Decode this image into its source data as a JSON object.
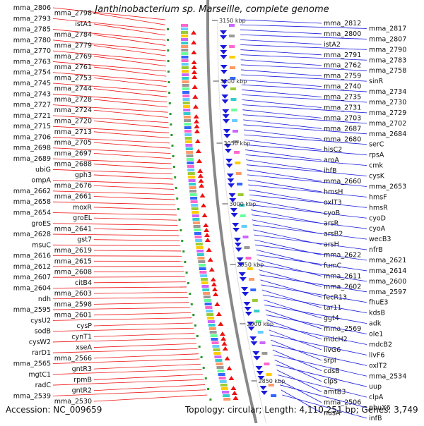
{
  "map": {
    "title": "Janthinobacterium sp. Marseille, complete genome",
    "accession": "Accession: NC_009659",
    "topology": "Topology: circular; Length: 4,110,251 bp; Genes: 3,749",
    "colors": {
      "left_genes": "#ee1111",
      "right_genes": "#1a1add",
      "backbone": "#888888",
      "tick": "#2a9a2a"
    },
    "kbp_labels": [
      "3150 kbp",
      "3100 kbp",
      "3050 kbp",
      "3000 kbp",
      "2950 kbp",
      "2900 kbp",
      "2850 kbp"
    ],
    "left_labels": [
      "mma_2806",
      "mma_2798",
      "mma_2793",
      "istA1",
      "mma_2785",
      "mma_2784",
      "mma_2780",
      "mma_2779",
      "mma_2770",
      "mma_2769",
      "mma_2763",
      "mma_2761",
      "mma_2754",
      "mma_2753",
      "mma_2745",
      "mma_2744",
      "mma_2743",
      "mma_2728",
      "mma_2727",
      "mma_2724",
      "mma_2721",
      "mma_2720",
      "mma_2715",
      "mma_2713",
      "mma_2706",
      "mma_2705",
      "mma_2698",
      "mma_2697",
      "mma_2689",
      "mma_2688",
      "ubiG",
      "gph3",
      "ompA",
      "mma_2676",
      "mma_2662",
      "mma_2661",
      "mma_2658",
      "moxR",
      "mma_2654",
      "groEL",
      "groES",
      "mma_2641",
      "mma_2628",
      "gst7",
      "msuC",
      "mma_2619",
      "mma_2616",
      "mma_2615",
      "mma_2612",
      "mma_2608",
      "mma_2607",
      "citB4",
      "mma_2604",
      "mma_2603",
      "ndh",
      "mma_2598",
      "mma_2595",
      "mma_2601",
      "cysU2",
      "cysP",
      "sodB",
      "cynT1",
      "cysW2",
      "xseA",
      "rarD1",
      "mma_2566",
      "mma_2565",
      "gntR3",
      "mgtC1",
      "rpmB",
      "radC",
      "gntR2",
      "mma_2539",
      "mma_2530"
    ],
    "right_labels": [
      "mma_2812",
      "mma_2817",
      "mma_2800",
      "mma_2807",
      "istA2",
      "mma_2790",
      "mma_2791",
      "mma_2783",
      "mma_2762",
      "mma_2758",
      "mma_2759",
      "sinR",
      "mma_2740",
      "mma_2734",
      "mma_2735",
      "mma_2730",
      "mma_2731",
      "mma_2729",
      "mma_2703",
      "mma_2702",
      "mma_2687",
      "mma_2684",
      "mma_2680",
      "serC",
      "hisC2",
      "rpsA",
      "aroA",
      "cmk",
      "ihfB",
      "cysK",
      "mma_2660",
      "mma_2653",
      "hmsH",
      "hmsF",
      "oxlT3",
      "hmsR",
      "cyoB",
      "cyoD",
      "arsR",
      "cyoA",
      "arsB2",
      "wecB3",
      "arsH",
      "nfrB",
      "mma_2622",
      "mma_2621",
      "fumC",
      "mma_2614",
      "mma_2611",
      "mma_2600",
      "mma_2602",
      "mma_2597",
      "fecR13",
      "fhuE3",
      "tar11",
      "kdsB",
      "ggt4",
      "adk",
      "mma_2569",
      "ole1",
      "mdcH2",
      "mdcB2",
      "livG6",
      "livF6",
      "srpI",
      "oxlT2",
      "cdsB",
      "mma_2534",
      "clpS",
      "uup",
      "amtB3",
      "clpA",
      "mma_2506",
      "pbuX6",
      "nusA",
      "infB"
    ]
  }
}
